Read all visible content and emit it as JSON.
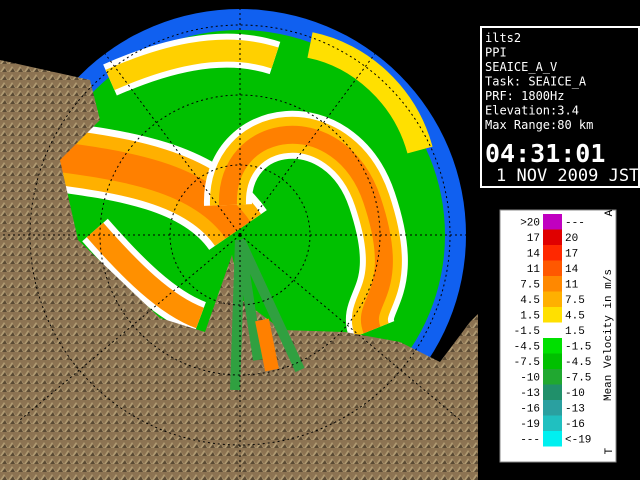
{
  "info": {
    "lines": [
      "ilts2",
      "PPI",
      "SEAICE_A_V",
      "Task: SEAICE_A",
      "PRF: 1800Hz",
      "Elevation:3.4",
      "Max Range:80 km"
    ],
    "time": "04:31:01",
    "date": "1 NOV 2009 JST"
  },
  "legend": {
    "title": "Mean Velocity in m/s",
    "corner_top": "A",
    "corner_bottom": "T",
    "rows": [
      {
        "low": ">20",
        "high": "---",
        "color": "#c000c0"
      },
      {
        "low": "17",
        "high": "20",
        "color": "#e00000"
      },
      {
        "low": "14",
        "high": "17",
        "color": "#ff2800"
      },
      {
        "low": "11",
        "high": "14",
        "color": "#ff5800"
      },
      {
        "low": "7.5",
        "high": "11",
        "color": "#ff8800"
      },
      {
        "low": "4.5",
        "high": "7.5",
        "color": "#ffb000"
      },
      {
        "low": "1.5",
        "high": "4.5",
        "color": "#ffe000"
      },
      {
        "low": "-1.5",
        "high": "1.5",
        "color": "#ffffff"
      },
      {
        "low": "-4.5",
        "high": "-1.5",
        "color": "#00e000"
      },
      {
        "low": "-7.5",
        "high": "-4.5",
        "color": "#00c000"
      },
      {
        "low": "-10",
        "high": "-7.5",
        "color": "#20a830"
      },
      {
        "low": "-13",
        "high": "-10",
        "color": "#20906a"
      },
      {
        "low": "-16",
        "high": "-13",
        "color": "#2aa0a0"
      },
      {
        "low": "-19",
        "high": "-16",
        "color": "#20c0c0"
      },
      {
        "low": "---",
        "high": "<-19",
        "color": "#00f0f0"
      }
    ]
  }
}
